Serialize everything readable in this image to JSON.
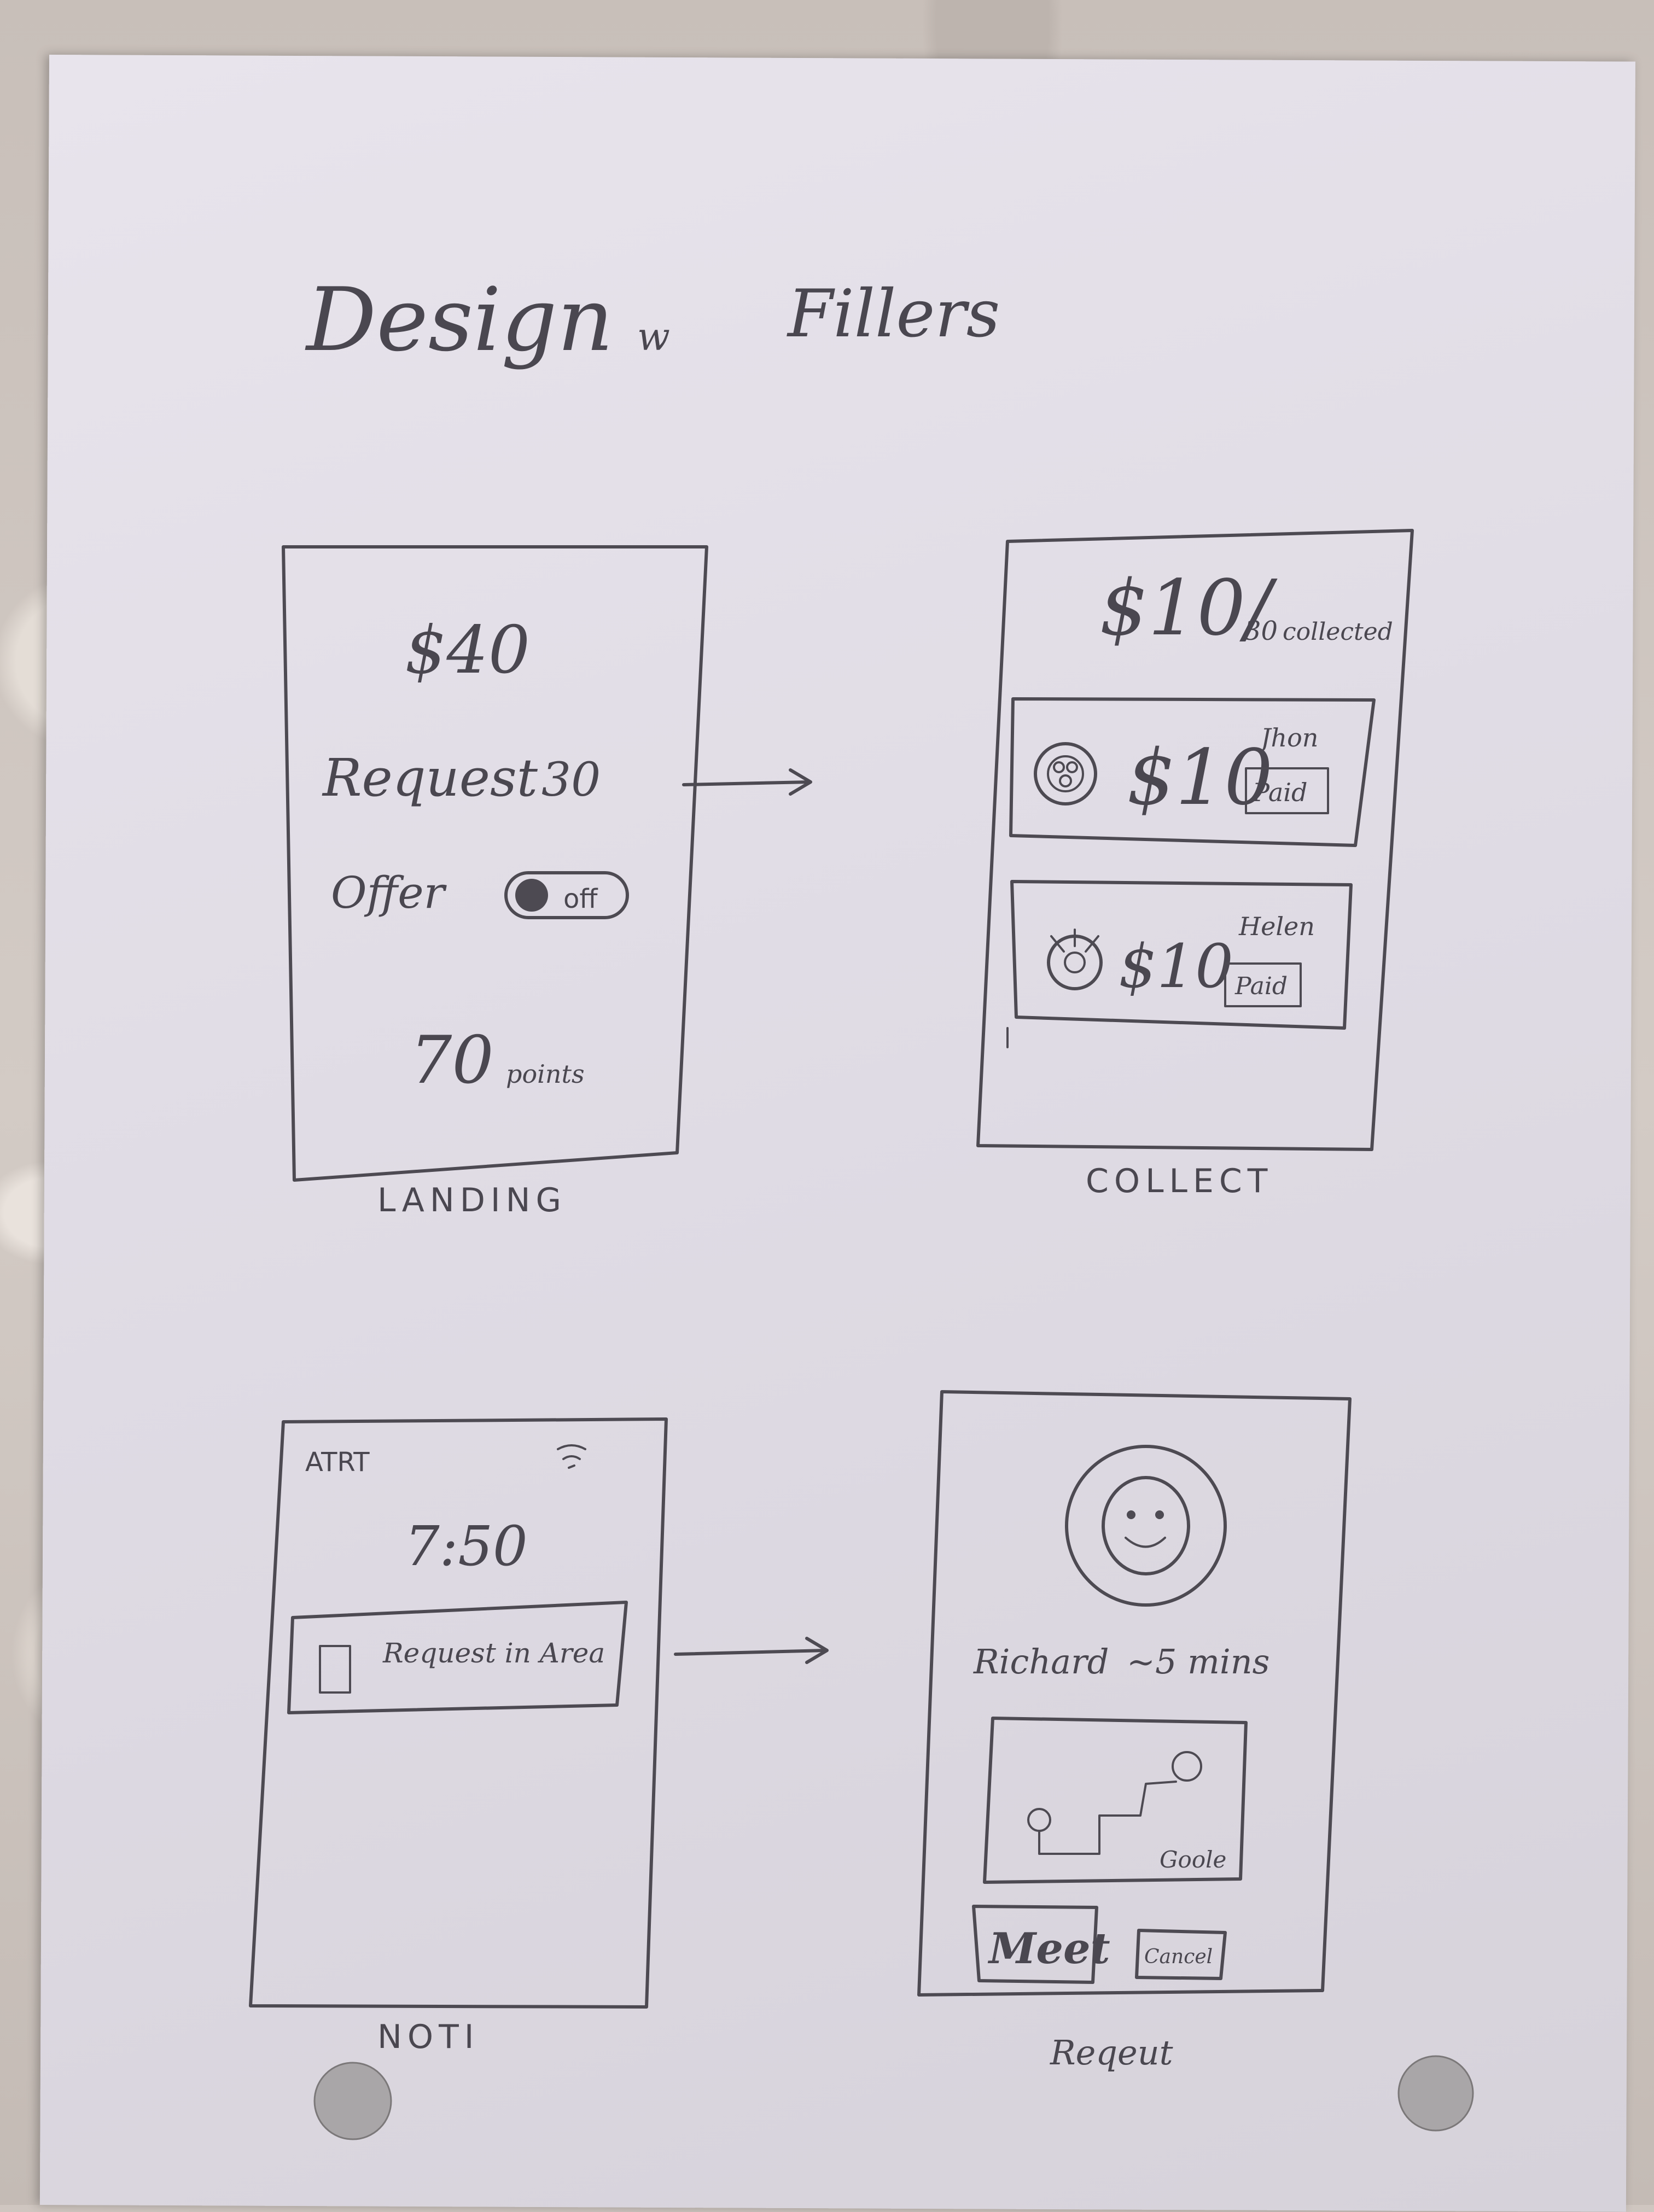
{
  "title": {
    "word1": "Design",
    "word2": "w",
    "word3": "Fillers"
  },
  "screens": {
    "landing": {
      "label": "LANDING",
      "balance": "$40",
      "request_label": "Request",
      "request_value": "30",
      "offer_label": "Offer",
      "toggle_label": "off",
      "points": "70",
      "points_unit": "points"
    },
    "collect": {
      "label": "COLLECT",
      "collected_amount": "$10/",
      "collected_total": "30",
      "collected_word": "collected",
      "items": [
        {
          "amount": "$10",
          "name": "Jhon",
          "status": "Paid"
        },
        {
          "amount": "$10",
          "name": "Helen",
          "status": "Paid"
        }
      ]
    },
    "noti": {
      "label": "NOTI",
      "carrier": "ATRT",
      "time": "7:50",
      "notification_text": "Request in Area"
    },
    "request": {
      "label": "Reqeut",
      "name": "Richard",
      "eta": "~5 mins",
      "map_label": "Goole",
      "meet_button": "Meet",
      "cancel_button": "Cancel"
    }
  },
  "colors": {
    "ink": "#4d4a52",
    "paper": "#e4e0e8"
  }
}
